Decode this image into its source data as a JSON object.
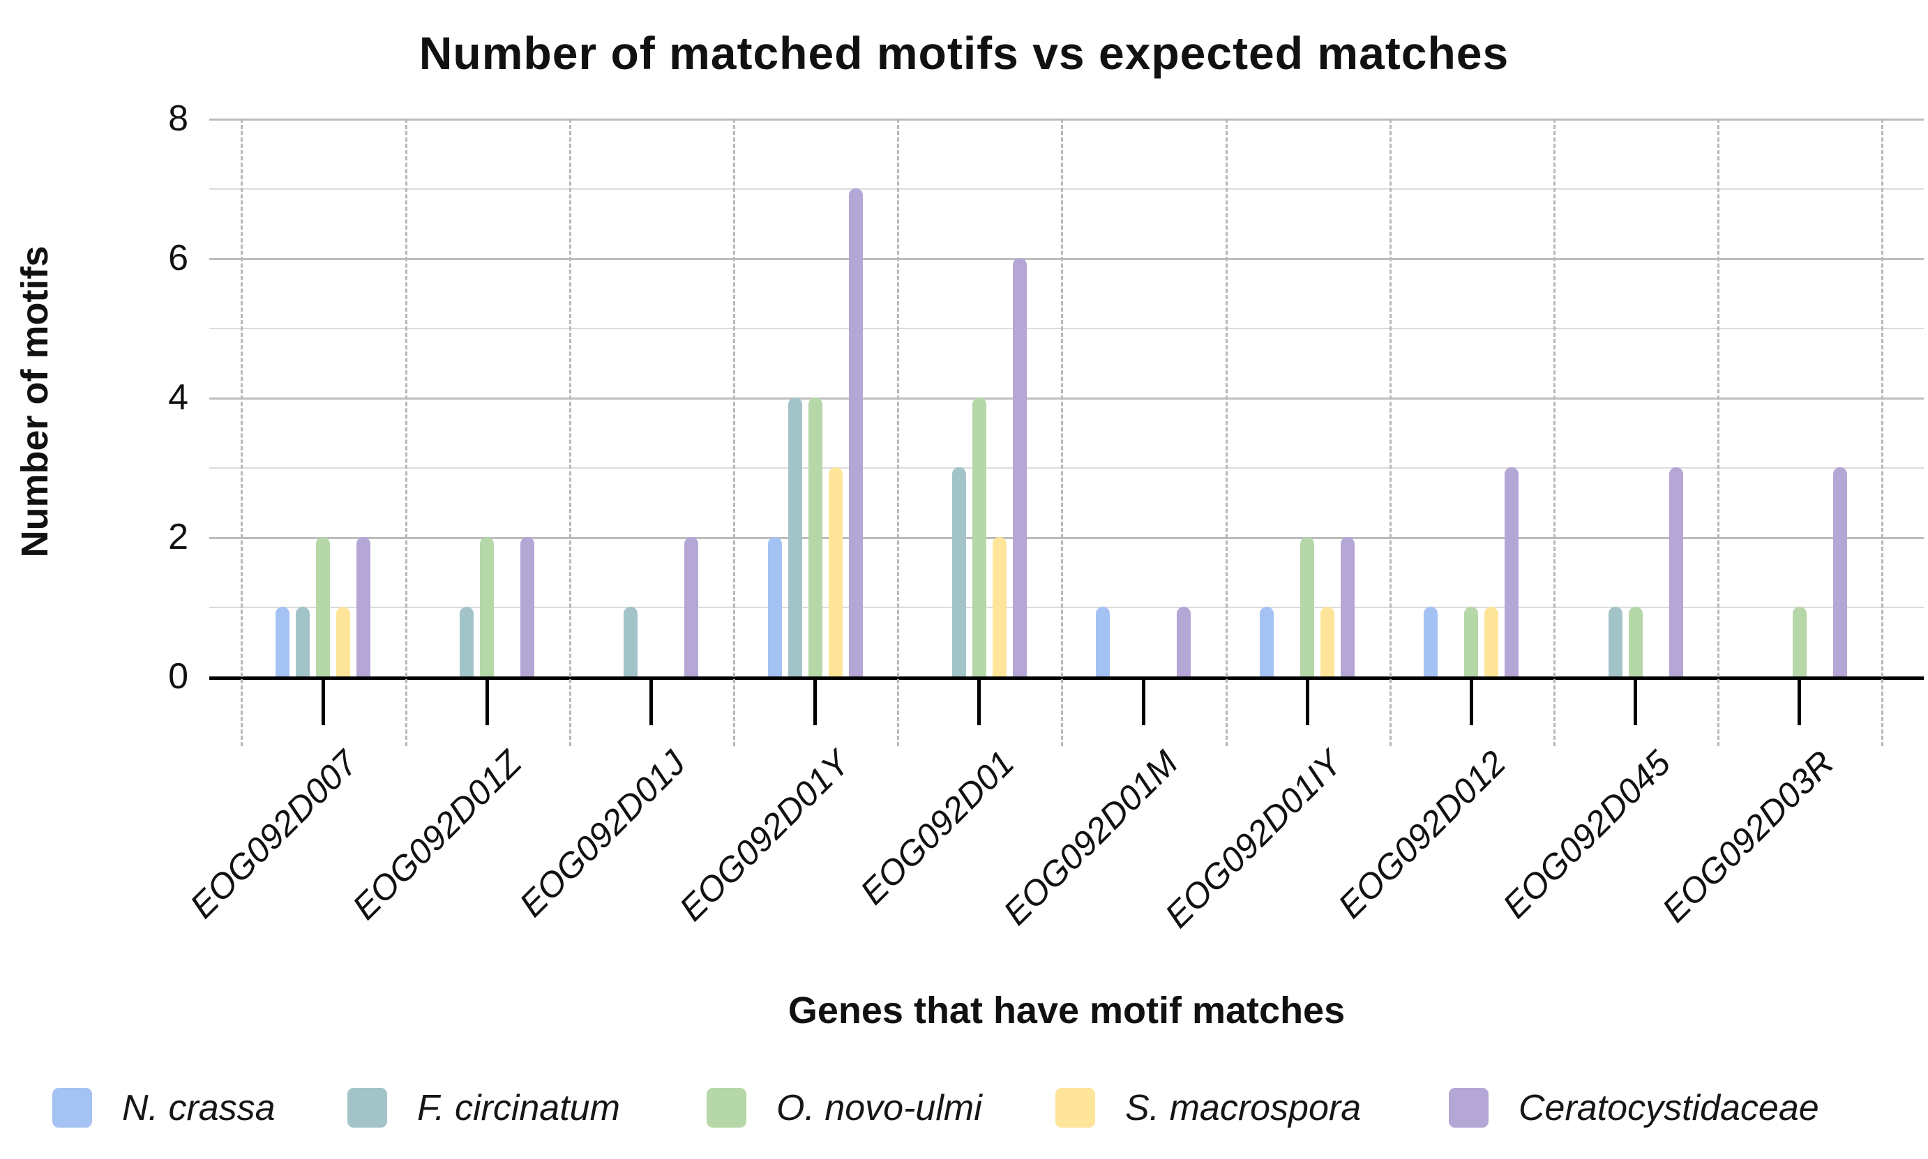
{
  "chart_data": {
    "type": "bar",
    "title": "Number of matched motifs vs expected matches",
    "xlabel": "Genes that have motif matches",
    "ylabel": "Number of motifs",
    "categories": [
      "EOG092D007",
      "EOG092D01Z",
      "EOG092D01J",
      "EOG092D01Y",
      "EOG092D01",
      "EOG092D01M",
      "EOG092D01IY",
      "EOG092D012",
      "EOG092D045",
      "EOG092D03R"
    ],
    "series": [
      {
        "name": "N. crassa",
        "color": "#a4c2f4",
        "values": [
          1,
          0,
          0,
          2,
          0,
          1,
          1,
          1,
          0,
          0
        ]
      },
      {
        "name": "F. circinatum",
        "color": "#a2c4c9",
        "values": [
          1,
          1,
          1,
          4,
          3,
          0,
          0,
          0,
          1,
          0
        ]
      },
      {
        "name": "O. novo-ulmi",
        "color": "#b6d7a8",
        "values": [
          2,
          2,
          0,
          4,
          4,
          0,
          2,
          1,
          1,
          1
        ]
      },
      {
        "name": "S. macrospora",
        "color": "#ffe599",
        "values": [
          1,
          0,
          0,
          3,
          2,
          0,
          1,
          1,
          0,
          0
        ]
      },
      {
        "name": "Ceratocystidaceae",
        "color": "#b4a7d6",
        "values": [
          2,
          2,
          2,
          7,
          6,
          1,
          2,
          3,
          3,
          3
        ]
      }
    ],
    "ylim": [
      0,
      8
    ],
    "yticks": [
      0,
      2,
      4,
      6,
      8
    ],
    "grid": {
      "horizontal": "solid-every-integer",
      "vertical": "dashed-group-boundaries"
    },
    "legend_position": "bottom",
    "axis_color": "#000000",
    "major_grid_color": "#bdbdbd",
    "minor_grid_color": "#dcdcdc",
    "dashed_grid_color": "#b8b8b8"
  }
}
